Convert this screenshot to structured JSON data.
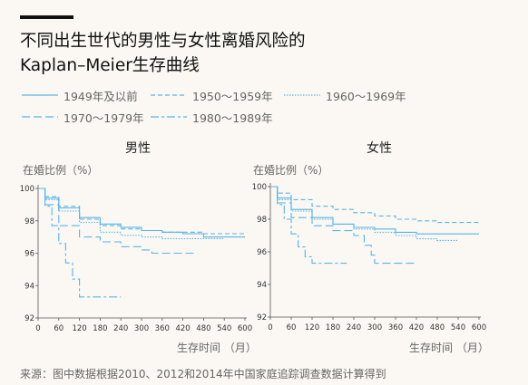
{
  "title_line1": "不同出生世代的男性与女性离婚风险的",
  "title_line2": "Kaplan–Meier生存曲线",
  "source": "来源：图中数据根据2010、2012和2014年中国家庭追踪调查数据计算得到",
  "colors": {
    "accent": "#56b4e9",
    "axis": "#555555",
    "text": "#666666"
  },
  "legend": [
    {
      "label": "1949年及以前",
      "dash": ""
    },
    {
      "label": "1950～1959年",
      "dash": "5 3"
    },
    {
      "label": "1960～1969年",
      "dash": "1.5 1.5"
    },
    {
      "label": "1970～1979年",
      "dash": "9 4"
    },
    {
      "label": "1980～1989年",
      "dash": "9 3 3 3"
    }
  ],
  "chart_data": [
    {
      "type": "line",
      "panel_title": "男性",
      "ylabel": "在婚比例（%）",
      "xlabel": "生存时间 （月）",
      "xlim": [
        0,
        600
      ],
      "ylim": [
        92,
        100
      ],
      "xticks": [
        0,
        60,
        120,
        180,
        240,
        300,
        360,
        420,
        480,
        540,
        600
      ],
      "yticks": [
        92,
        94,
        96,
        98,
        100
      ],
      "series": [
        {
          "name": "1949年及以前",
          "x": [
            0,
            20,
            60,
            120,
            180,
            240,
            300,
            360,
            420,
            480,
            540,
            600
          ],
          "y": [
            100,
            99.4,
            98.8,
            98.2,
            97.8,
            97.6,
            97.4,
            97.3,
            97.2,
            97.0,
            97.0,
            97.0
          ]
        },
        {
          "name": "1950～1959年",
          "x": [
            0,
            20,
            60,
            120,
            180,
            240,
            300,
            360,
            420,
            480,
            540,
            600
          ],
          "y": [
            100,
            99.5,
            98.9,
            98.1,
            97.7,
            97.5,
            97.4,
            97.3,
            97.3,
            97.2,
            97.2,
            97.2
          ]
        },
        {
          "name": "1960～1969年",
          "x": [
            0,
            20,
            60,
            120,
            180,
            240,
            300,
            360,
            420,
            480,
            540
          ],
          "y": [
            100,
            99.3,
            98.6,
            97.9,
            97.3,
            97.1,
            97.0,
            96.9,
            96.9,
            96.9,
            96.9
          ]
        },
        {
          "name": "1970～1979年",
          "x": [
            0,
            20,
            60,
            120,
            180,
            240,
            300,
            330,
            360,
            400,
            420,
            460
          ],
          "y": [
            100,
            99.0,
            97.7,
            97.0,
            96.7,
            96.4,
            96.2,
            96.0,
            96.0,
            96.0,
            96.0,
            96.0
          ]
        },
        {
          "name": "1980～1989年",
          "x": [
            0,
            20,
            40,
            60,
            80,
            100,
            120,
            160,
            180,
            240
          ],
          "y": [
            100,
            98.9,
            97.7,
            96.6,
            95.4,
            94.4,
            93.3,
            93.3,
            93.3,
            93.3
          ]
        }
      ]
    },
    {
      "type": "line",
      "panel_title": "女性",
      "ylabel": "在婚比例（%）",
      "xlabel": "生存时间 （月）",
      "xlim": [
        0,
        600
      ],
      "ylim": [
        92,
        100
      ],
      "xticks": [
        0,
        60,
        120,
        180,
        240,
        300,
        360,
        420,
        480,
        540,
        600
      ],
      "yticks": [
        92,
        94,
        96,
        98,
        100
      ],
      "series": [
        {
          "name": "1949年及以前",
          "x": [
            0,
            20,
            60,
            120,
            180,
            240,
            300,
            360,
            420,
            480,
            540,
            600
          ],
          "y": [
            100,
            99.3,
            98.6,
            98.1,
            97.7,
            97.5,
            97.4,
            97.2,
            97.1,
            97.1,
            97.1,
            97.1
          ]
        },
        {
          "name": "1950～1959年",
          "x": [
            0,
            20,
            60,
            120,
            180,
            240,
            300,
            360,
            420,
            480,
            540,
            600
          ],
          "y": [
            100,
            99.6,
            99.2,
            98.8,
            98.6,
            98.4,
            98.2,
            98.0,
            97.9,
            97.8,
            97.8,
            97.8
          ]
        },
        {
          "name": "1960～1969年",
          "x": [
            0,
            20,
            60,
            120,
            180,
            240,
            300,
            360,
            420,
            480,
            540
          ],
          "y": [
            100,
            99.2,
            98.5,
            98.0,
            97.7,
            97.4,
            97.2,
            97.0,
            96.8,
            96.7,
            96.7
          ]
        },
        {
          "name": "1970～1979年",
          "x": [
            0,
            20,
            60,
            120,
            180,
            240,
            270,
            290,
            300,
            360,
            420
          ],
          "y": [
            100,
            99.0,
            98.1,
            97.6,
            97.3,
            97.0,
            96.4,
            95.8,
            95.3,
            95.3,
            95.3
          ]
        },
        {
          "name": "1980～1989年",
          "x": [
            0,
            20,
            40,
            60,
            80,
            100,
            120,
            160,
            180,
            220
          ],
          "y": [
            100,
            98.9,
            98.0,
            97.1,
            96.3,
            95.7,
            95.3,
            95.3,
            95.3,
            95.3
          ]
        }
      ]
    }
  ]
}
